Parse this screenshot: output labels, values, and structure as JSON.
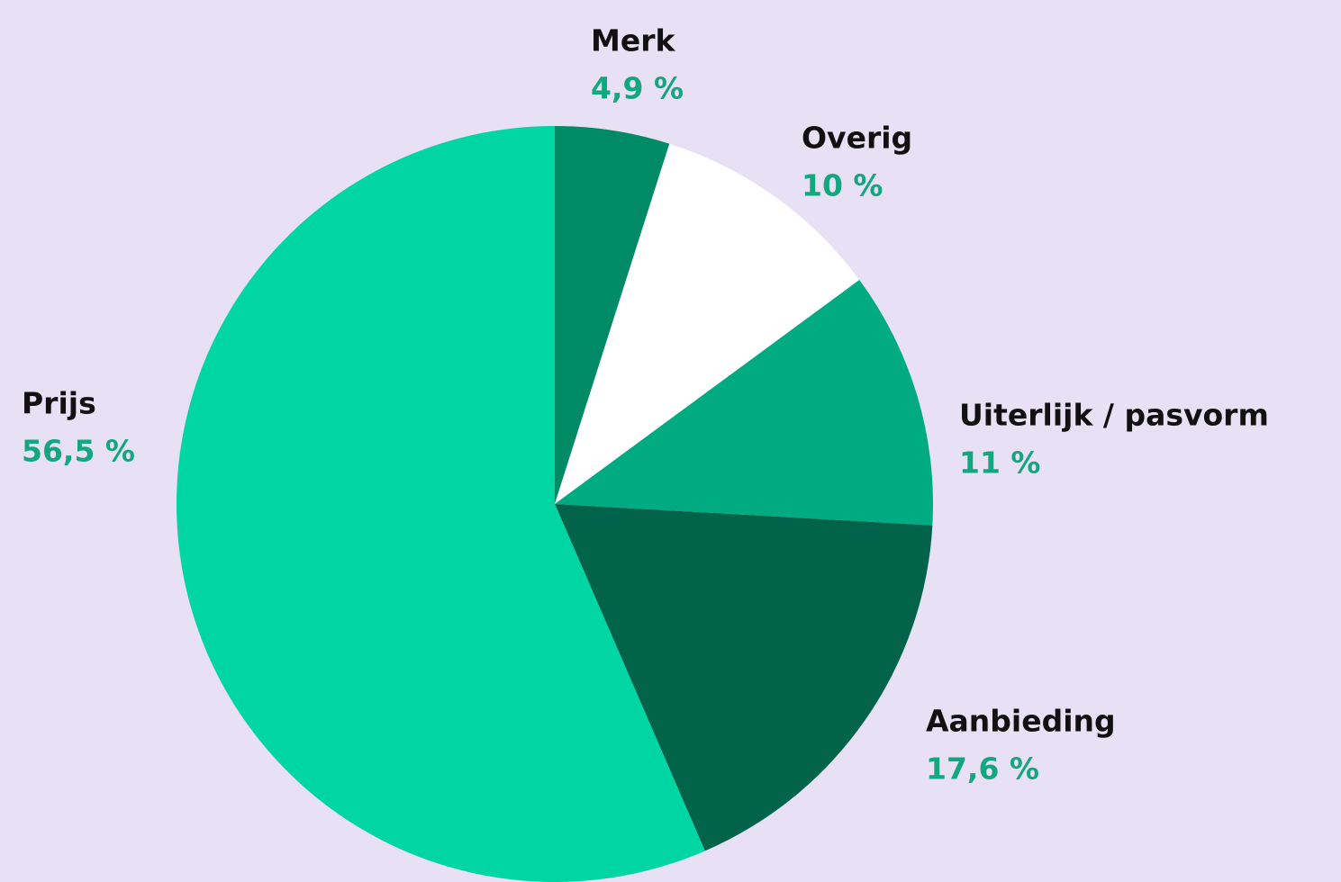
{
  "chart_data": {
    "type": "pie",
    "categories": [
      "Merk",
      "Overig",
      "Uiterlijk / pasvorm",
      "Aanbieding",
      "Prijs"
    ],
    "values": [
      4.9,
      10,
      11,
      17.6,
      56.5
    ],
    "value_labels": [
      "4,9 %",
      "10 %",
      "11 %",
      "17,6 %",
      "56,5 %"
    ],
    "colors": [
      "#008a66",
      "#ffffff",
      "#00ab82",
      "#00634a",
      "#00d6a3"
    ]
  }
}
